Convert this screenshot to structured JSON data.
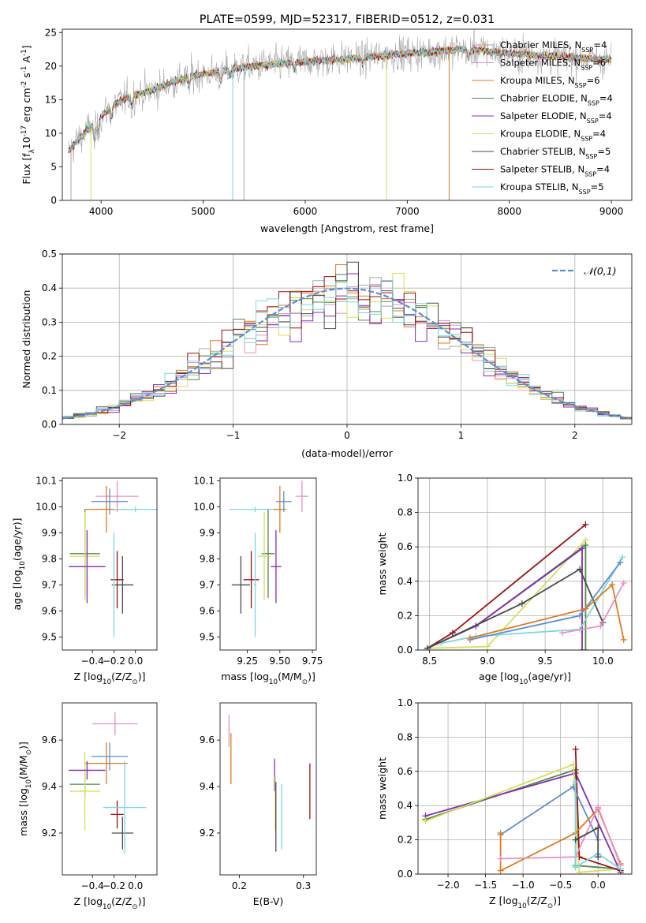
{
  "chart_data": [
    {
      "type": "line",
      "title": "PLATE=0599, MJD=52317, FIBERID=0512, z=0.031",
      "xlabel": "wavelength [Angstrom, rest frame]",
      "ylabel": "Flux [f$_\\lambda$10$^{-17}$ erg cm$^{-2}$ s$^{-1}$ A$^{-1}$]",
      "xlim": [
        3620,
        9200
      ],
      "ylim": [
        0,
        25.5
      ],
      "xticks": [
        4000,
        5000,
        6000,
        7000,
        8000,
        9000
      ],
      "yticks": [
        0,
        5,
        10,
        15,
        20,
        25
      ],
      "grid": false,
      "legend_position": "right",
      "series": [
        {
          "name": "Chabrier MILES, N$_{SSP}$=4",
          "color": "#a8a8a8"
        },
        {
          "name": "Salpeter MILES, N$_{SSP}$=6",
          "color": "#e88fc8"
        },
        {
          "name": "Kroupa MILES, N$_{SSP}$=6",
          "color": "#e07b1a"
        },
        {
          "name": "Chabrier ELODIE, N$_{SSP}$=4",
          "color": "#4c8c4a"
        },
        {
          "name": "Salpeter ELODIE, N$_{SSP}$=4",
          "color": "#8b2ab5"
        },
        {
          "name": "Kroupa ELODIE, N$_{SSP}$=4",
          "color": "#d4e157"
        },
        {
          "name": "Chabrier STELIB, N$_{SSP}$=5",
          "color": "#4a4a4a"
        },
        {
          "name": "Salpeter STELIB, N$_{SSP}$=4",
          "color": "#a01010"
        },
        {
          "name": "Kroupa STELIB, N$_{SSP}$=5",
          "color": "#7ad7e0"
        }
      ],
      "continuum_points": [
        [
          3680,
          7.2
        ],
        [
          3800,
          9.5
        ],
        [
          3950,
          11.8
        ],
        [
          4100,
          14.0
        ],
        [
          4300,
          15.6
        ],
        [
          4500,
          16.4
        ],
        [
          4700,
          17.6
        ],
        [
          4900,
          18.6
        ],
        [
          5100,
          19.0
        ],
        [
          5300,
          19.6
        ],
        [
          5500,
          20.0
        ],
        [
          5700,
          20.3
        ],
        [
          5900,
          20.6
        ],
        [
          6100,
          20.8
        ],
        [
          6300,
          21.0
        ],
        [
          6500,
          21.2
        ],
        [
          6700,
          21.5
        ],
        [
          6900,
          21.8
        ],
        [
          7100,
          22.0
        ],
        [
          7300,
          22.2
        ],
        [
          7500,
          22.5
        ],
        [
          7700,
          22.4
        ],
        [
          7900,
          22.0
        ],
        [
          8100,
          21.8
        ],
        [
          8300,
          21.6
        ],
        [
          8500,
          21.4
        ],
        [
          8700,
          21.2
        ],
        [
          8900,
          21.0
        ]
      ]
    },
    {
      "type": "histogram",
      "xlabel": "(data-model)/error",
      "ylabel": "Normed distribution",
      "xlim": [
        -2.5,
        2.5
      ],
      "ylim": [
        0,
        0.5
      ],
      "xticks": [
        -2,
        -1,
        0,
        1,
        2
      ],
      "yticks": [
        0.0,
        0.1,
        0.2,
        0.3,
        0.4,
        0.5
      ],
      "grid": true,
      "legend_position": "top-right",
      "bin_width": 0.1,
      "reference_curve": {
        "name": "$\\mathcal{N}(0,1)$",
        "color": "#5b8fd6",
        "style": "dashed"
      }
    },
    {
      "type": "scatter",
      "subtype": "errorbar",
      "xlabel": "Z [log$_{10}$(Z/Z$_\\odot$)]",
      "ylabel": "age  [log$_{10}$(age/yr)]",
      "xlim": [
        -0.68,
        0.2
      ],
      "ylim": [
        9.45,
        10.11
      ],
      "xticks": [
        -0.4,
        -0.2,
        0.0
      ],
      "yticks": [
        9.5,
        9.6,
        9.7,
        9.8,
        9.9,
        10.0,
        10.1
      ],
      "points": [
        {
          "x": -0.17,
          "y": 10.04,
          "xerr": 0.2,
          "yerr": 0.06,
          "color": "#e88fc8"
        },
        {
          "x": -0.24,
          "y": 10.02,
          "xerr": 0.17,
          "yerr": 0.05,
          "color": "#5b8fd6"
        },
        {
          "x": -0.27,
          "y": 9.99,
          "xerr": 0.2,
          "yerr": 0.09,
          "color": "#e07b1a"
        },
        {
          "x": 0.0,
          "y": 9.99,
          "xerr": 0.2,
          "yerr": 0.01,
          "color": "#7ad7e0"
        },
        {
          "x": -0.47,
          "y": 9.82,
          "xerr": 0.14,
          "yerr": 0.17,
          "color": "#4c8c4a"
        },
        {
          "x": -0.47,
          "y": 9.81,
          "xerr": 0.14,
          "yerr": 0.17,
          "color": "#d4e157"
        },
        {
          "x": -0.45,
          "y": 9.77,
          "xerr": 0.17,
          "yerr": 0.14,
          "color": "#8b2ab5"
        },
        {
          "x": -0.17,
          "y": 9.72,
          "xerr": 0.06,
          "yerr": 0.11,
          "color": "#a01010"
        },
        {
          "x": -0.12,
          "y": 9.7,
          "xerr": 0.1,
          "yerr": 0.11,
          "color": "#4a4a4a"
        },
        {
          "x": -0.2,
          "y": 9.7,
          "xerr": 0.01,
          "yerr": 0.2,
          "color": "#7ad7e0"
        }
      ]
    },
    {
      "type": "scatter",
      "subtype": "errorbar",
      "xlabel": "mass [log$_{10}$(M/M$_\\odot$)]",
      "ylabel": "",
      "xlim": [
        9.04,
        9.78
      ],
      "ylim": [
        9.45,
        10.11
      ],
      "xticks": [
        9.25,
        9.5,
        9.75
      ],
      "yticks": [
        9.5,
        9.6,
        9.7,
        9.8,
        9.9,
        10.0,
        10.1
      ],
      "points": [
        {
          "x": 9.67,
          "y": 10.04,
          "xerr": 0.05,
          "yerr": 0.06,
          "color": "#e88fc8"
        },
        {
          "x": 9.53,
          "y": 10.02,
          "xerr": 0.06,
          "yerr": 0.04,
          "color": "#5b8fd6"
        },
        {
          "x": 9.31,
          "y": 9.99,
          "xerr": 0.2,
          "yerr": 0.01,
          "color": "#7ad7e0"
        },
        {
          "x": 9.5,
          "y": 9.99,
          "xerr": 0.05,
          "yerr": 0.09,
          "color": "#e07b1a"
        },
        {
          "x": 9.41,
          "y": 9.82,
          "xerr": 0.05,
          "yerr": 0.17,
          "color": "#4c8c4a"
        },
        {
          "x": 9.38,
          "y": 9.81,
          "xerr": 0.05,
          "yerr": 0.17,
          "color": "#d4e157"
        },
        {
          "x": 9.47,
          "y": 9.77,
          "xerr": 0.04,
          "yerr": 0.14,
          "color": "#8b2ab5"
        },
        {
          "x": 9.28,
          "y": 9.72,
          "xerr": 0.06,
          "yerr": 0.11,
          "color": "#a01010"
        },
        {
          "x": 9.2,
          "y": 9.7,
          "xerr": 0.07,
          "yerr": 0.11,
          "color": "#4a4a4a"
        },
        {
          "x": 9.31,
          "y": 9.7,
          "xerr": 0.01,
          "yerr": 0.2,
          "color": "#7ad7e0"
        }
      ]
    },
    {
      "type": "line",
      "xlabel": "age  [log$_{10}$(age/yr)]",
      "ylabel": "mass weight",
      "xlim": [
        8.4,
        10.25
      ],
      "ylim": [
        0,
        1.0
      ],
      "xticks": [
        8.5,
        9.0,
        9.5,
        10.0
      ],
      "yticks": [
        0.0,
        0.2,
        0.4,
        0.6,
        0.8,
        1.0
      ],
      "grid": true,
      "series": [
        {
          "color": "#a01010",
          "x": [
            8.48,
            8.7,
            9.85
          ],
          "y": [
            0.01,
            0.1,
            0.73
          ]
        },
        {
          "color": "#d4e157",
          "x": [
            8.48,
            9.0,
            9.85,
            9.85
          ],
          "y": [
            0.01,
            0.02,
            0.64,
            0.0
          ]
        },
        {
          "color": "#4c8c4a",
          "x": [
            8.48,
            8.9,
            9.85,
            9.85
          ],
          "y": [
            0.01,
            0.14,
            0.61,
            0.0
          ]
        },
        {
          "color": "#8b2ab5",
          "x": [
            8.48,
            8.9,
            9.82,
            9.82
          ],
          "y": [
            0.01,
            0.14,
            0.59,
            0.0
          ]
        },
        {
          "color": "#7ad7e0",
          "x": [
            8.6,
            8.9,
            9.8,
            10.17
          ],
          "y": [
            0.04,
            0.08,
            0.12,
            0.54
          ]
        },
        {
          "color": "#4a4a4a",
          "x": [
            8.48,
            9.3,
            9.8,
            10.0
          ],
          "y": [
            0.01,
            0.27,
            0.47,
            0.16
          ]
        },
        {
          "color": "#5b8fd6",
          "x": [
            8.85,
            9.8,
            10.15
          ],
          "y": [
            0.06,
            0.2,
            0.51
          ]
        },
        {
          "color": "#e07b1a",
          "x": [
            8.85,
            9.85,
            10.08,
            10.18
          ],
          "y": [
            0.07,
            0.24,
            0.38,
            0.06
          ]
        },
        {
          "color": "#e88fc8",
          "x": [
            9.65,
            9.98,
            10.18
          ],
          "y": [
            0.1,
            0.14,
            0.39
          ]
        }
      ]
    },
    {
      "type": "scatter",
      "subtype": "errorbar",
      "xlabel": "Z [log$_{10}$(Z/Z$_\\odot$)]",
      "ylabel": "mass [log$_{10}$(M/M$_\\odot$)]",
      "xlim": [
        -0.68,
        0.2
      ],
      "ylim": [
        9.02,
        9.76
      ],
      "xticks": [
        -0.4,
        -0.2,
        0.0
      ],
      "yticks": [
        9.2,
        9.4,
        9.6
      ],
      "points": [
        {
          "x": -0.19,
          "y": 9.67,
          "xerr": 0.21,
          "yerr": 0.05,
          "color": "#e88fc8"
        },
        {
          "x": -0.24,
          "y": 9.53,
          "xerr": 0.17,
          "yerr": 0.06,
          "color": "#5b8fd6"
        },
        {
          "x": -0.27,
          "y": 9.5,
          "xerr": 0.2,
          "yerr": 0.09,
          "color": "#e07b1a"
        },
        {
          "x": -0.47,
          "y": 9.41,
          "xerr": 0.14,
          "yerr": 0.05,
          "color": "#4c8c4a"
        },
        {
          "x": -0.47,
          "y": 9.38,
          "xerr": 0.14,
          "yerr": 0.17,
          "color": "#d4e157"
        },
        {
          "x": -0.45,
          "y": 9.47,
          "xerr": 0.17,
          "yerr": 0.04,
          "color": "#8b2ab5"
        },
        {
          "x": -0.17,
          "y": 9.28,
          "xerr": 0.06,
          "yerr": 0.06,
          "color": "#a01010"
        },
        {
          "x": -0.12,
          "y": 9.2,
          "xerr": 0.1,
          "yerr": 0.07,
          "color": "#4a4a4a"
        },
        {
          "x": -0.1,
          "y": 9.31,
          "xerr": 0.2,
          "yerr": 0.2,
          "color": "#7ad7e0"
        }
      ]
    },
    {
      "type": "scatter",
      "subtype": "errorbar",
      "xlabel": "E(B-V)",
      "ylabel": "",
      "xlim": [
        0.17,
        0.32
      ],
      "ylim": [
        9.02,
        9.76
      ],
      "xticks": [
        0.2,
        0.3
      ],
      "yticks": [
        9.2,
        9.4,
        9.6
      ],
      "points": [
        {
          "x": 0.184,
          "y": 9.64,
          "yerr": 0.07,
          "color": "#e88fc8"
        },
        {
          "x": 0.187,
          "y": 9.52,
          "yerr": 0.11,
          "color": "#e07b1a"
        },
        {
          "x": 0.255,
          "y": 9.45,
          "yerr": 0.07,
          "color": "#8b2ab5"
        },
        {
          "x": 0.256,
          "y": 9.33,
          "yerr": 0.12,
          "color": "#d4e157"
        },
        {
          "x": 0.257,
          "y": 9.27,
          "yerr": 0.15,
          "color": "#4a4a4a"
        },
        {
          "x": 0.266,
          "y": 9.27,
          "yerr": 0.14,
          "color": "#7ad7e0"
        },
        {
          "x": 0.31,
          "y": 9.38,
          "yerr": 0.12,
          "color": "#a01010"
        }
      ]
    },
    {
      "type": "line",
      "xlabel": "Z [log$_{10}$(Z/Z$_\\odot$)]",
      "ylabel": "mass weight",
      "xlim": [
        -2.4,
        0.45
      ],
      "ylim": [
        0,
        1.0
      ],
      "xticks": [
        -2.0,
        -1.5,
        -1.0,
        -0.5,
        0.0
      ],
      "yticks": [
        0.0,
        0.2,
        0.4,
        0.6,
        0.8,
        1.0
      ],
      "grid": true,
      "series": [
        {
          "color": "#4c8c4a",
          "x": [
            -2.3,
            -0.3,
            -0.3,
            0.3
          ],
          "y": [
            0.32,
            0.61,
            0.05,
            0.03
          ]
        },
        {
          "color": "#8b2ab5",
          "x": [
            -2.3,
            -0.3,
            0.3
          ],
          "y": [
            0.34,
            0.59,
            0.01
          ]
        },
        {
          "color": "#d4e157",
          "x": [
            -2.3,
            -0.33,
            -0.25,
            0.3
          ],
          "y": [
            0.31,
            0.64,
            0.01,
            0.03
          ]
        },
        {
          "color": "#a01010",
          "x": [
            -0.3,
            -0.25,
            0.3
          ],
          "y": [
            0.73,
            0.1,
            0.02
          ]
        },
        {
          "color": "#5b8fd6",
          "x": [
            -1.3,
            -0.33,
            0.0
          ],
          "y": [
            0.23,
            0.51,
            0.2
          ]
        },
        {
          "color": "#e07b1a",
          "x": [
            -1.3,
            -1.3,
            -0.3,
            0.0,
            0.3
          ],
          "y": [
            0.24,
            0.02,
            0.24,
            0.38,
            0.06
          ]
        },
        {
          "color": "#e88fc8",
          "x": [
            -1.3,
            -0.3,
            0.0,
            0.3
          ],
          "y": [
            0.09,
            0.1,
            0.39,
            0.05
          ]
        },
        {
          "color": "#7ad7e0",
          "x": [
            -0.3,
            -0.3,
            0.0,
            0.3
          ],
          "y": [
            0.54,
            0.04,
            0.12,
            0.03
          ]
        },
        {
          "color": "#4a4a4a",
          "x": [
            -0.3,
            0.0,
            0.0
          ],
          "y": [
            0.2,
            0.27,
            0.1
          ]
        }
      ]
    }
  ]
}
